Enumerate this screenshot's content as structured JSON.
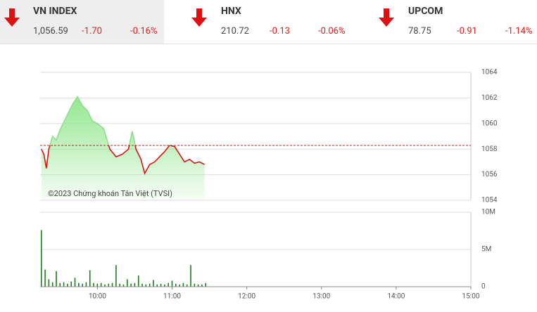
{
  "indices": [
    {
      "name": "VN INDEX",
      "value": "1,056.59",
      "change": "-1.70",
      "percent": "-0.16%"
    },
    {
      "name": "HNX",
      "value": "210.72",
      "change": "-0.13",
      "percent": "-0.06%"
    },
    {
      "name": "UPCOM",
      "value": "78.75",
      "change": "-0.91",
      "percent": "-1.14%"
    }
  ],
  "chart_data": [
    {
      "type": "line",
      "watermark": "©2023 Chứng khoán Tân Việt (TVSI)",
      "xlim": [
        "09:14",
        "15:00"
      ],
      "ylim": [
        1054,
        1064
      ],
      "yticks": [
        1054,
        1056,
        1058,
        1060,
        1062,
        1064
      ],
      "reference": 1058.29,
      "reference_color": "#cc0000",
      "up_color": "#8fdc8f",
      "down_color": "#dd1111",
      "area_color": "#8fe68a",
      "grid": true,
      "series": [
        {
          "name": "VN INDEX",
          "x": [
            "09:15",
            "09:17",
            "09:19",
            "09:21",
            "09:24",
            "09:27",
            "09:30",
            "09:35",
            "09:40",
            "09:44",
            "09:48",
            "09:52",
            "09:56",
            "10:00",
            "10:05",
            "10:10",
            "10:15",
            "10:20",
            "10:25",
            "10:28",
            "10:31",
            "10:35",
            "10:38",
            "10:42",
            "10:46",
            "10:50",
            "10:54",
            "10:58",
            "11:02",
            "11:06",
            "11:10",
            "11:14",
            "11:18",
            "11:22",
            "11:26"
          ],
          "values": [
            1058.0,
            1057.6,
            1056.5,
            1058.0,
            1059.0,
            1058.7,
            1059.5,
            1060.5,
            1061.5,
            1062.1,
            1061.4,
            1061.0,
            1060.2,
            1060.0,
            1059.6,
            1058.0,
            1057.4,
            1057.6,
            1058.0,
            1059.4,
            1058.0,
            1057.2,
            1056.1,
            1056.8,
            1057.0,
            1057.4,
            1057.8,
            1058.3,
            1058.2,
            1057.6,
            1057.0,
            1057.2,
            1056.9,
            1057.0,
            1056.8
          ]
        }
      ]
    },
    {
      "type": "bar",
      "xlim": [
        "09:14",
        "15:00"
      ],
      "ylim": [
        0,
        10000000
      ],
      "yticks": [
        0,
        {
          "value": 5000000,
          "label": "5M"
        },
        {
          "value": 10000000,
          "label": "10M"
        }
      ],
      "xticks": [
        "10:00",
        "11:00",
        "12:00",
        "13:00",
        "14:00",
        "15:00"
      ],
      "color": "#1f7a1f",
      "grid": true,
      "x": [
        "09:15",
        "09:18",
        "09:21",
        "09:24",
        "09:27",
        "09:30",
        "09:33",
        "09:36",
        "09:39",
        "09:42",
        "09:45",
        "09:48",
        "09:51",
        "09:54",
        "09:57",
        "10:00",
        "10:03",
        "10:06",
        "10:09",
        "10:12",
        "10:15",
        "10:18",
        "10:21",
        "10:24",
        "10:27",
        "10:30",
        "10:33",
        "10:36",
        "10:39",
        "10:42",
        "10:45",
        "10:48",
        "10:51",
        "10:54",
        "10:57",
        "11:00",
        "11:03",
        "11:06",
        "11:09",
        "11:12",
        "11:15",
        "11:18",
        "11:21",
        "11:24",
        "11:27"
      ],
      "values": [
        7600000,
        2300000,
        1000000,
        600000,
        2100000,
        500000,
        600000,
        400000,
        700000,
        1200000,
        500000,
        400000,
        600000,
        2200000,
        500000,
        400000,
        500000,
        300000,
        400000,
        500000,
        2900000,
        400000,
        300000,
        1000000,
        400000,
        500000,
        1500000,
        400000,
        300000,
        400000,
        900000,
        300000,
        400000,
        300000,
        500000,
        800000,
        400000,
        300000,
        500000,
        300000,
        2900000,
        400000,
        300000,
        300000,
        500000
      ]
    }
  ]
}
